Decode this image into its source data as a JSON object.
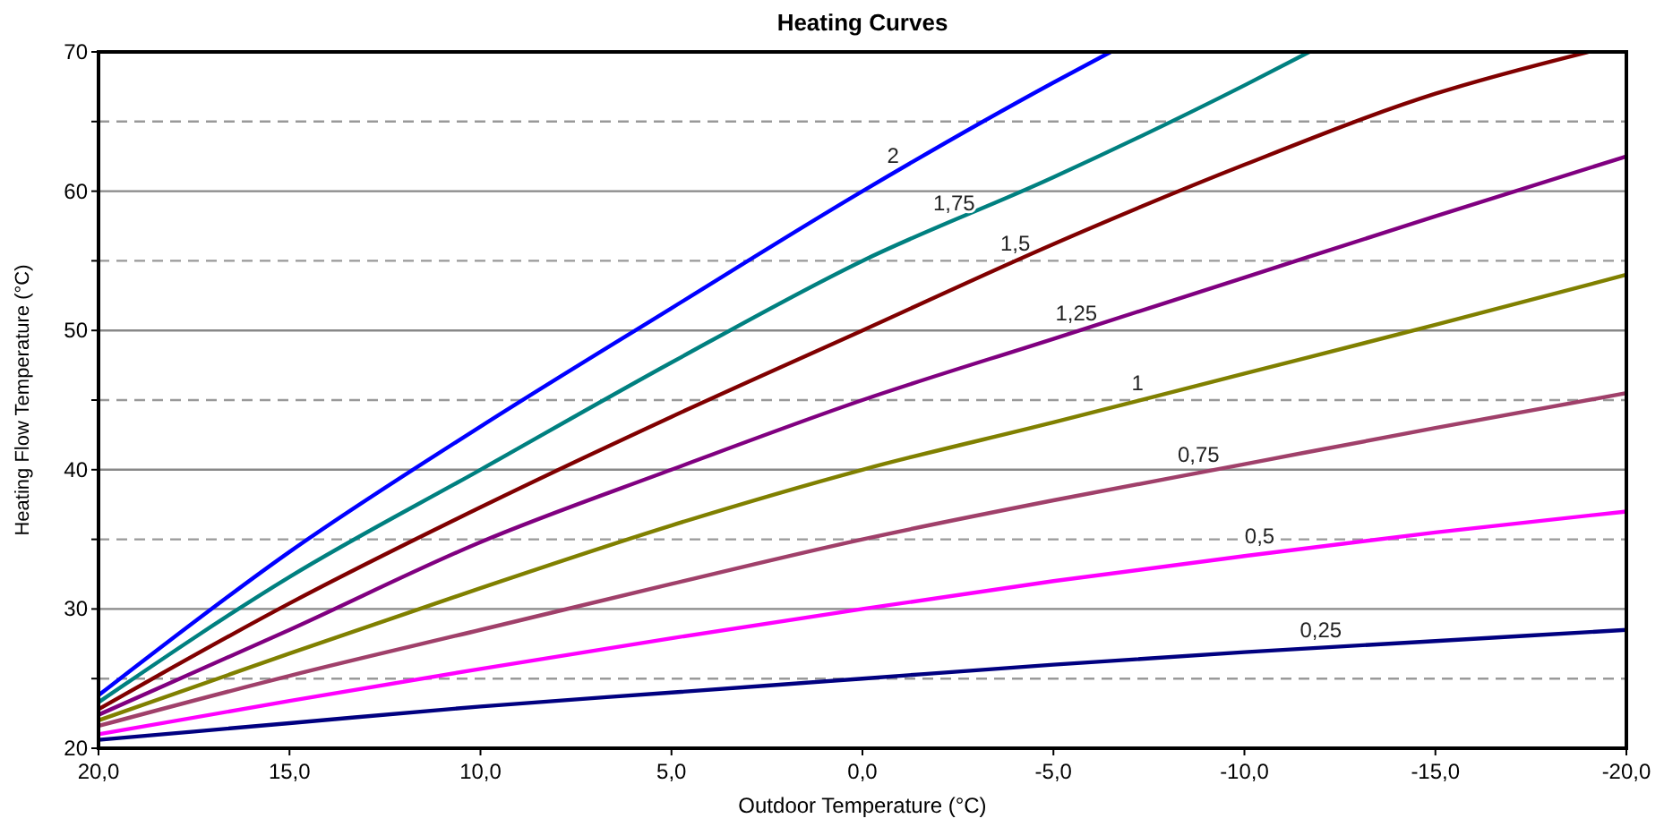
{
  "chart_data": {
    "type": "line",
    "title": "Heating Curves",
    "xlabel": "Outdoor Temperature (°C)",
    "ylabel": "Heating Flow Temperature (°C)",
    "xlim": [
      20,
      -20
    ],
    "ylim": [
      20,
      70
    ],
    "xticks": [
      {
        "value": 20,
        "label": "20,0"
      },
      {
        "value": 15,
        "label": "15,0"
      },
      {
        "value": 10,
        "label": "10,0"
      },
      {
        "value": 5,
        "label": "5,0"
      },
      {
        "value": 0,
        "label": "0,0"
      },
      {
        "value": -5,
        "label": "-5,0"
      },
      {
        "value": -10,
        "label": "-10,0"
      },
      {
        "value": -15,
        "label": "-15,0"
      },
      {
        "value": -20,
        "label": "-20,0"
      }
    ],
    "yticks": [
      20,
      {
        "value": 25,
        "label": null
      },
      30,
      {
        "value": 35,
        "label": null
      },
      40,
      {
        "value": 45,
        "label": null
      },
      50,
      {
        "value": 55,
        "label": null
      },
      60,
      {
        "value": 65,
        "label": null
      },
      70
    ],
    "grid": "y",
    "marker": "none",
    "line_style": "solid",
    "series": [
      {
        "name": "0,25",
        "color": "#000080",
        "x": [
          20,
          15,
          10,
          5,
          0,
          -5,
          -10,
          -15,
          -20
        ],
        "values": [
          20.6,
          21.8,
          23,
          24,
          25,
          26,
          26.9,
          27.7,
          28.5
        ]
      },
      {
        "name": "0,5",
        "color": "#ff00ff",
        "x": [
          20,
          15,
          10,
          5,
          0,
          -5,
          -10,
          -15,
          -20
        ],
        "values": [
          21,
          23.4,
          25.7,
          27.9,
          30,
          32,
          33.8,
          35.5,
          37
        ]
      },
      {
        "name": "0,75",
        "color": "#a0406a",
        "x": [
          20,
          15,
          10,
          5,
          0,
          -5,
          -10,
          -15,
          -20
        ],
        "values": [
          21.6,
          25.2,
          28.5,
          31.8,
          35,
          37.8,
          40.4,
          43,
          45.5
        ]
      },
      {
        "name": "1",
        "color": "#808000",
        "x": [
          20,
          15,
          10,
          5,
          0,
          -5,
          -10,
          -15,
          -20
        ],
        "values": [
          22,
          26.8,
          31.5,
          36,
          40,
          43.4,
          46.9,
          50.4,
          54
        ]
      },
      {
        "name": "1,25",
        "color": "#800080",
        "x": [
          20,
          15,
          10,
          5,
          0,
          -5,
          -10,
          -15,
          -20
        ],
        "values": [
          22.4,
          28.5,
          34.8,
          40,
          45,
          49.4,
          53.8,
          58.2,
          62.5
        ]
      },
      {
        "name": "1,5",
        "color": "#800000",
        "x": [
          20,
          15,
          10,
          5,
          0,
          -5,
          -10,
          -15,
          -19
        ],
        "values": [
          22.8,
          30.4,
          37.3,
          43.8,
          50,
          56.2,
          61.9,
          67,
          70
        ]
      },
      {
        "name": "1,75",
        "color": "#008080",
        "x": [
          20,
          15,
          10,
          5,
          0,
          -5,
          -10,
          -11.7
        ],
        "values": [
          23.3,
          32.3,
          40,
          47.7,
          55,
          61,
          67.6,
          70
        ]
      },
      {
        "name": "2",
        "color": "#0000ff",
        "x": [
          20,
          15,
          10,
          5,
          0,
          -5,
          -6.5
        ],
        "values": [
          23.8,
          34.1,
          43.1,
          51.6,
          60,
          67.8,
          70
        ]
      }
    ]
  }
}
